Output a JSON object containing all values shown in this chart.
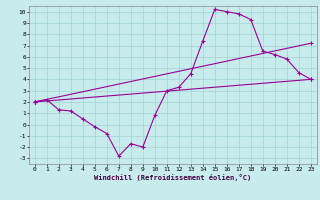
{
  "xlabel": "Windchill (Refroidissement éolien,°C)",
  "bg_color": "#c8ecec",
  "grid_color": "#a8d8d8",
  "line_color": "#990099",
  "xlim": [
    -0.5,
    23.5
  ],
  "ylim": [
    -3.5,
    10.5
  ],
  "xticks": [
    0,
    1,
    2,
    3,
    4,
    5,
    6,
    7,
    8,
    9,
    10,
    11,
    12,
    13,
    14,
    15,
    16,
    17,
    18,
    19,
    20,
    21,
    22,
    23
  ],
  "yticks": [
    -3,
    -2,
    -1,
    0,
    1,
    2,
    3,
    4,
    5,
    6,
    7,
    8,
    9,
    10
  ],
  "line1_x": [
    0,
    1,
    2,
    3,
    4,
    5,
    6,
    7,
    8,
    9,
    10,
    11,
    12,
    13,
    14,
    15,
    16,
    17,
    18,
    19,
    20,
    21,
    22,
    23
  ],
  "line1_y": [
    2.0,
    2.2,
    1.3,
    1.2,
    0.5,
    -0.2,
    -0.8,
    -2.8,
    -1.7,
    -2.0,
    0.8,
    3.0,
    3.3,
    4.5,
    7.4,
    10.2,
    10.0,
    9.8,
    9.3,
    6.5,
    6.2,
    5.8,
    4.6,
    4.0
  ],
  "line2_x": [
    0,
    23
  ],
  "line2_y": [
    2.0,
    4.0
  ],
  "line3_x": [
    0,
    23
  ],
  "line3_y": [
    2.0,
    7.2
  ]
}
